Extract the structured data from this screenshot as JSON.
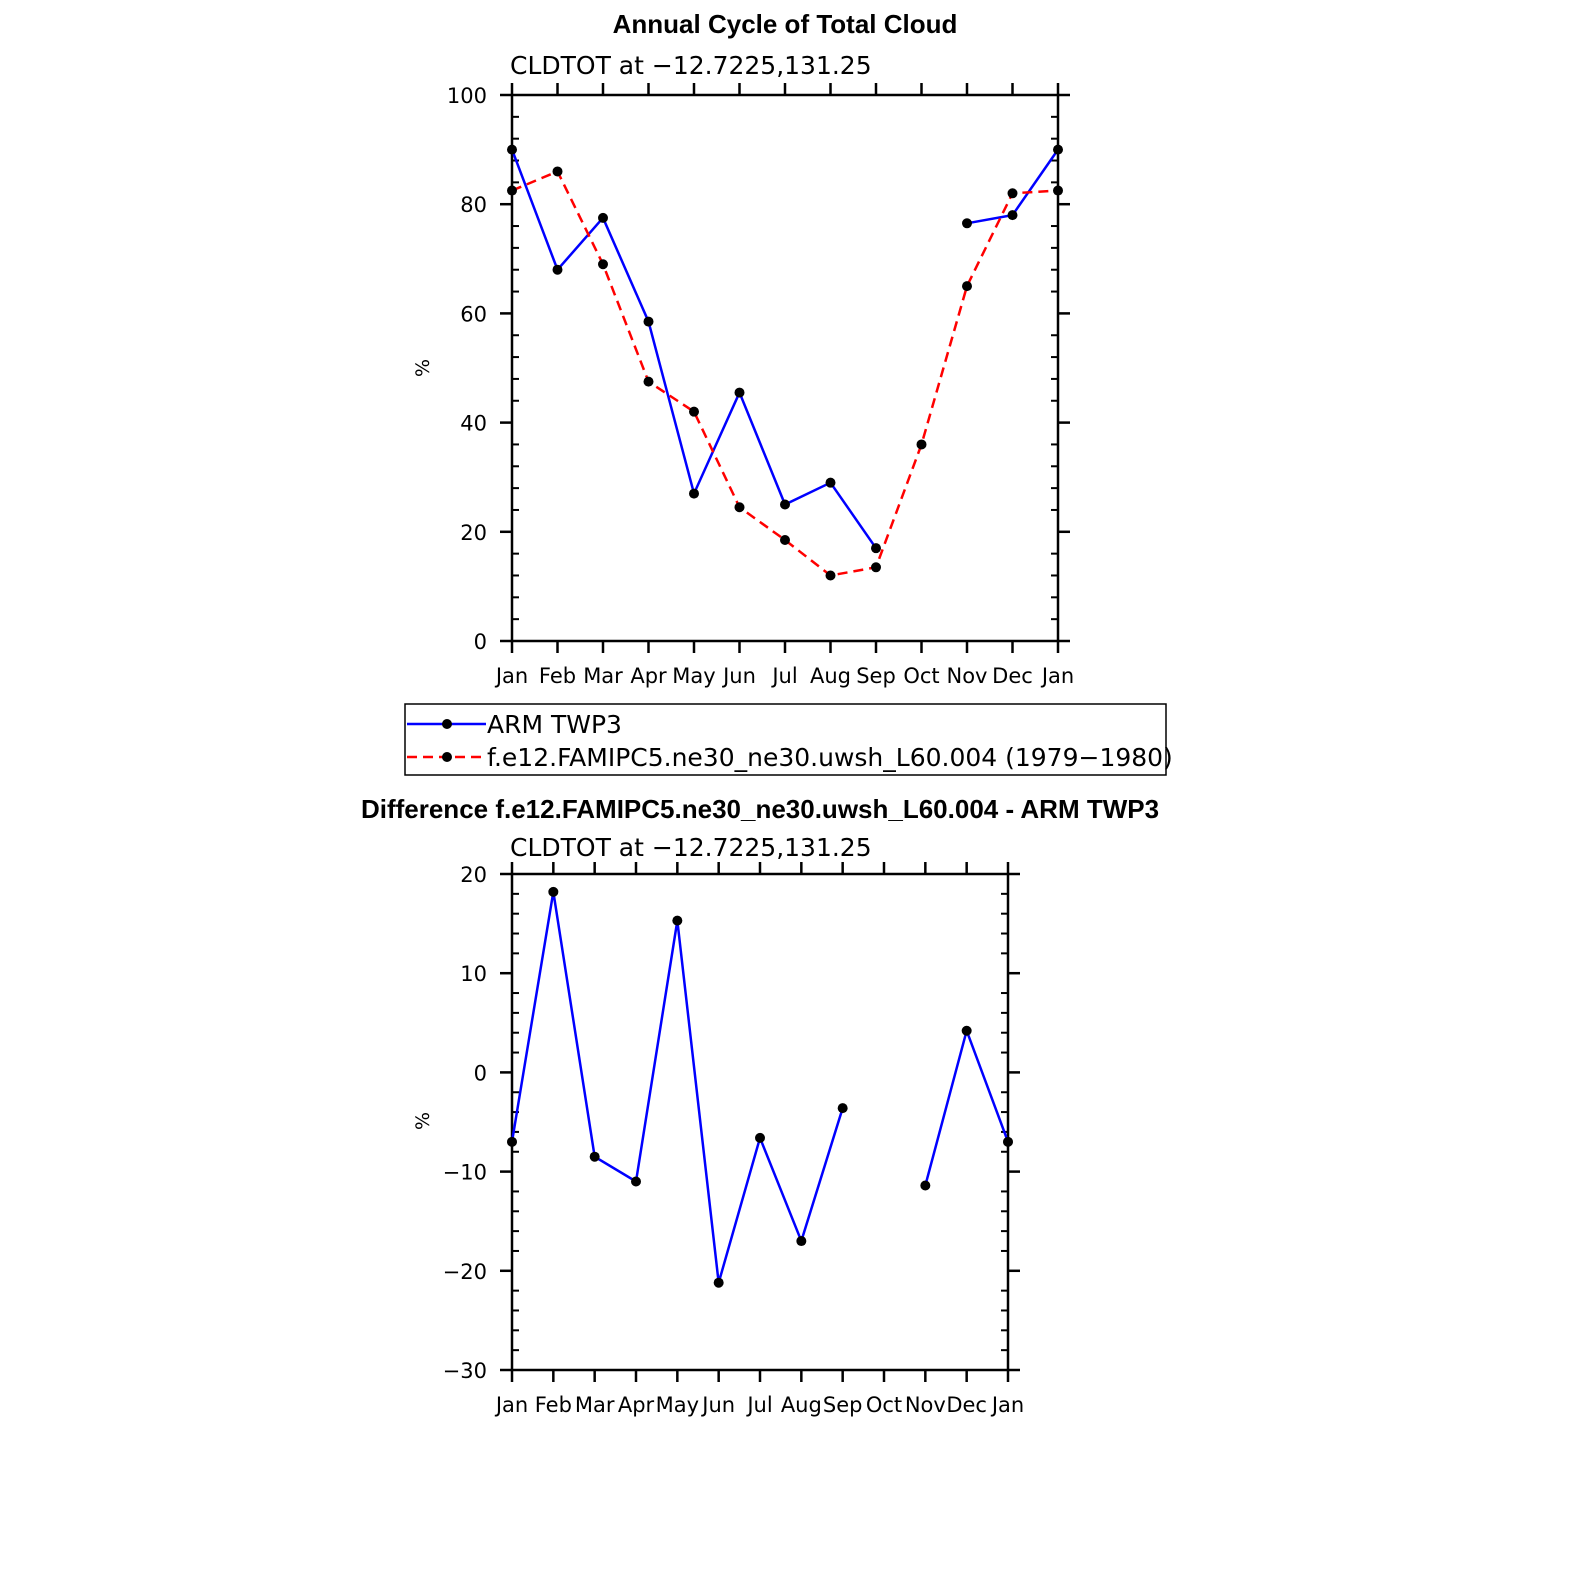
{
  "chart_data": [
    {
      "type": "line",
      "title": "Annual Cycle of Total Cloud",
      "subtitle": "CLDTOT at −12.7225,131.25",
      "ylabel": "%",
      "xlabel": "",
      "ylim": [
        0,
        100
      ],
      "yticks": [
        "0",
        "20",
        "40",
        "60",
        "80",
        "100"
      ],
      "categories": [
        "Jan",
        "Feb",
        "Mar",
        "Apr",
        "May",
        "Jun",
        "Jul",
        "Aug",
        "Sep",
        "Oct",
        "Nov",
        "Dec",
        "Jan"
      ],
      "series": [
        {
          "name": "ARM TWP3",
          "color": "#0000ff",
          "dash": "solid",
          "values": [
            90,
            68,
            77.5,
            58.5,
            27,
            45.5,
            25,
            29,
            17,
            null,
            76.5,
            78,
            90
          ]
        },
        {
          "name": "f.e12.FAMIPC5.ne30_ne30.uwsh_L60.004 (1979−1980)",
          "color": "#ff0000",
          "dash": "dashed",
          "values": [
            82.5,
            86,
            69,
            47.5,
            42,
            24.5,
            18.5,
            12,
            13.5,
            36,
            65,
            82,
            82.5
          ]
        }
      ]
    },
    {
      "type": "line",
      "title": "Difference f.e12.FAMIPC5.ne30_ne30.uwsh_L60.004 - ARM TWP3",
      "subtitle": "CLDTOT at −12.7225,131.25",
      "ylabel": "%",
      "xlabel": "",
      "ylim": [
        -30,
        20
      ],
      "yticks": [
        "−30",
        "−20",
        "−10",
        "0",
        "10",
        "20"
      ],
      "categories": [
        "Jan",
        "Feb",
        "Mar",
        "Apr",
        "May",
        "Jun",
        "Jul",
        "Aug",
        "Sep",
        "Oct",
        "Nov",
        "Dec",
        "Jan"
      ],
      "series": [
        {
          "name": "Difference",
          "color": "#0000ff",
          "dash": "solid",
          "values": [
            -7,
            18.2,
            -8.5,
            -11,
            15.3,
            -21.2,
            -6.6,
            -17,
            -3.6,
            null,
            -11.4,
            4.2,
            -7
          ]
        }
      ]
    }
  ]
}
